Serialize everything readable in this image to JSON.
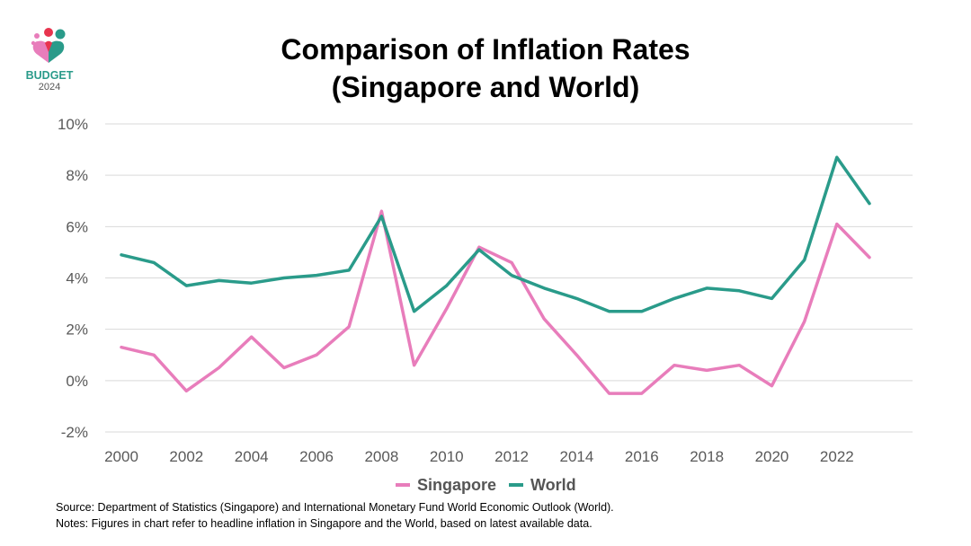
{
  "logo": {
    "text": "BUDGET",
    "year": "2024"
  },
  "title_line1": "Comparison of Inflation Rates",
  "title_line2": "(Singapore and World)",
  "chart_data": {
    "type": "line",
    "title": "Comparison of Inflation Rates (Singapore and World)",
    "x": [
      2000,
      2001,
      2002,
      2003,
      2004,
      2005,
      2006,
      2007,
      2008,
      2009,
      2010,
      2011,
      2012,
      2013,
      2014,
      2015,
      2016,
      2017,
      2018,
      2019,
      2020,
      2021,
      2022,
      2023
    ],
    "x_tick_labels": [
      "2000",
      "2002",
      "2004",
      "2006",
      "2008",
      "2010",
      "2012",
      "2014",
      "2016",
      "2018",
      "2020",
      "2022"
    ],
    "y_tick_values": [
      -2,
      0,
      2,
      4,
      6,
      8,
      10
    ],
    "y_tick_labels": [
      "-2%",
      "0%",
      "2%",
      "4%",
      "6%",
      "8%",
      "10%"
    ],
    "ylim": [
      -2,
      10
    ],
    "ylabel": "",
    "xlabel": "",
    "grid": true,
    "legend_position": "bottom",
    "series": [
      {
        "name": "Singapore",
        "color": "#e87dbb",
        "values": [
          1.3,
          1.0,
          -0.4,
          0.5,
          1.7,
          0.5,
          1.0,
          2.1,
          6.6,
          0.6,
          2.8,
          5.2,
          4.6,
          2.4,
          1.0,
          -0.5,
          -0.5,
          0.6,
          0.4,
          0.6,
          -0.2,
          2.3,
          6.1,
          4.8
        ]
      },
      {
        "name": "World",
        "color": "#2a9b8a",
        "values": [
          4.9,
          4.6,
          3.7,
          3.9,
          3.8,
          4.0,
          4.1,
          4.3,
          6.4,
          2.7,
          3.7,
          5.1,
          4.1,
          3.6,
          3.2,
          2.7,
          2.7,
          3.2,
          3.6,
          3.5,
          3.2,
          4.7,
          8.7,
          6.9
        ]
      }
    ]
  },
  "notes": {
    "source": "Source: Department of Statistics (Singapore) and International Monetary Fund World Economic Outlook (World).",
    "note": "Notes: Figures in chart refer to headline inflation in Singapore and the World, based on latest available data."
  }
}
